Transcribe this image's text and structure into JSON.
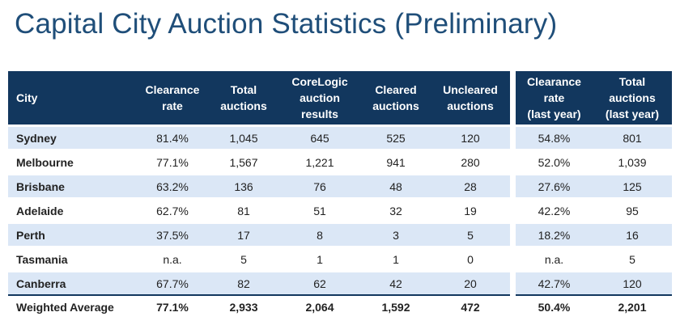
{
  "title": "Capital City Auction Statistics (Preliminary)",
  "headers": {
    "city": "City",
    "clearance_rate": [
      "Clearance",
      "rate"
    ],
    "total_auctions": [
      "Total",
      "auctions"
    ],
    "corelogic_results": [
      "CoreLogic",
      "auction",
      "results"
    ],
    "cleared": [
      "Cleared",
      "auctions"
    ],
    "uncleared": [
      "Uncleared",
      "auctions"
    ],
    "clearance_last_year": [
      "Clearance",
      "rate",
      "(last year)"
    ],
    "total_last_year": [
      "Total",
      "auctions",
      "(last year)"
    ]
  },
  "rows": [
    {
      "city": "Sydney",
      "clearance_rate": "81.4%",
      "total": "1,045",
      "corelogic": "645",
      "cleared": "525",
      "uncleared": "120",
      "clearance_ly": "54.8%",
      "total_ly": "801"
    },
    {
      "city": "Melbourne",
      "clearance_rate": "77.1%",
      "total": "1,567",
      "corelogic": "1,221",
      "cleared": "941",
      "uncleared": "280",
      "clearance_ly": "52.0%",
      "total_ly": "1,039"
    },
    {
      "city": "Brisbane",
      "clearance_rate": "63.2%",
      "total": "136",
      "corelogic": "76",
      "cleared": "48",
      "uncleared": "28",
      "clearance_ly": "27.6%",
      "total_ly": "125"
    },
    {
      "city": "Adelaide",
      "clearance_rate": "62.7%",
      "total": "81",
      "corelogic": "51",
      "cleared": "32",
      "uncleared": "19",
      "clearance_ly": "42.2%",
      "total_ly": "95"
    },
    {
      "city": "Perth",
      "clearance_rate": "37.5%",
      "total": "17",
      "corelogic": "8",
      "cleared": "3",
      "uncleared": "5",
      "clearance_ly": "18.2%",
      "total_ly": "16"
    },
    {
      "city": "Tasmania",
      "clearance_rate": "n.a.",
      "total": "5",
      "corelogic": "1",
      "cleared": "1",
      "uncleared": "0",
      "clearance_ly": "n.a.",
      "total_ly": "5"
    },
    {
      "city": "Canberra",
      "clearance_rate": "67.7%",
      "total": "82",
      "corelogic": "62",
      "cleared": "42",
      "uncleared": "20",
      "clearance_ly": "42.7%",
      "total_ly": "120"
    }
  ],
  "total_row": {
    "city": "Weighted Average",
    "clearance_rate": "77.1%",
    "total": "2,933",
    "corelogic": "2,064",
    "cleared": "1,592",
    "uncleared": "472",
    "clearance_ly": "50.4%",
    "total_ly": "2,201"
  },
  "colors": {
    "header_bg": "#12375e",
    "row_alt_bg": "#dbe7f6",
    "title": "#1f4e79"
  }
}
